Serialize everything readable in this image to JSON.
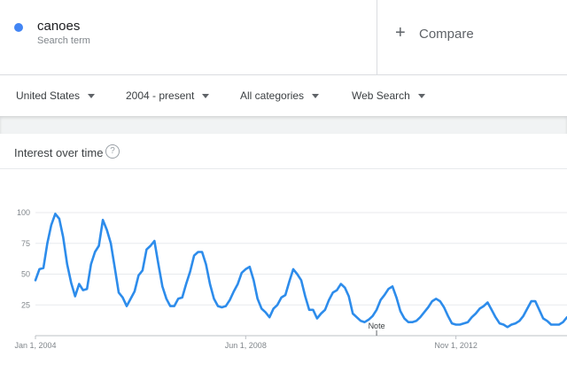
{
  "search_term": {
    "name": "canoes",
    "subtitle": "Search term",
    "color": "#4285f4"
  },
  "compare": {
    "plus": "+",
    "label": "Compare"
  },
  "filters": {
    "country": "United States",
    "time_range": "2004 - present",
    "category": "All categories",
    "search_type": "Web Search"
  },
  "chart_section": {
    "title": "Interest over time",
    "help": "?"
  },
  "chart_data": {
    "type": "line",
    "title": "Interest over time",
    "xlabel": "",
    "ylabel": "",
    "ylim": [
      0,
      100
    ],
    "y_ticks": [
      25,
      50,
      75,
      100
    ],
    "x_ticks": [
      {
        "t": 0,
        "label": "Jan 1, 2004"
      },
      {
        "t": 53,
        "label": "Jun 1, 2008"
      },
      {
        "t": 106,
        "label": "Nov 1, 2012"
      }
    ],
    "note": {
      "t": 86,
      "label": "Note"
    },
    "series_color": "#2d8ceb",
    "series": [
      {
        "values": [
          45,
          54,
          55,
          75,
          90,
          99,
          95,
          80,
          58,
          43,
          32,
          42,
          37,
          38,
          58,
          68,
          73,
          94,
          86,
          75,
          55,
          35,
          31,
          24,
          30,
          36,
          49,
          53,
          70,
          73,
          77,
          58,
          40,
          30,
          24,
          24,
          30,
          31,
          42,
          52,
          65,
          68,
          68,
          58,
          42,
          30,
          24,
          23,
          24,
          29,
          36,
          42,
          51,
          54,
          56,
          45,
          30,
          22,
          19,
          15,
          22,
          25,
          31,
          33,
          44,
          54,
          50,
          45,
          32,
          21,
          21,
          14,
          18,
          21,
          29,
          35,
          37,
          42,
          39,
          32,
          18,
          15,
          12,
          11,
          13,
          16,
          21,
          29,
          33,
          38,
          40,
          31,
          20,
          14,
          11,
          11,
          12,
          15,
          19,
          23,
          28,
          30,
          28,
          23,
          16,
          10,
          9,
          9,
          10,
          11,
          15,
          18,
          22,
          24,
          27,
          21,
          15,
          10,
          9,
          7,
          9,
          10,
          12,
          16,
          22,
          28,
          28,
          21,
          14,
          12,
          9,
          9,
          9,
          11,
          15
        ]
      }
    ]
  }
}
